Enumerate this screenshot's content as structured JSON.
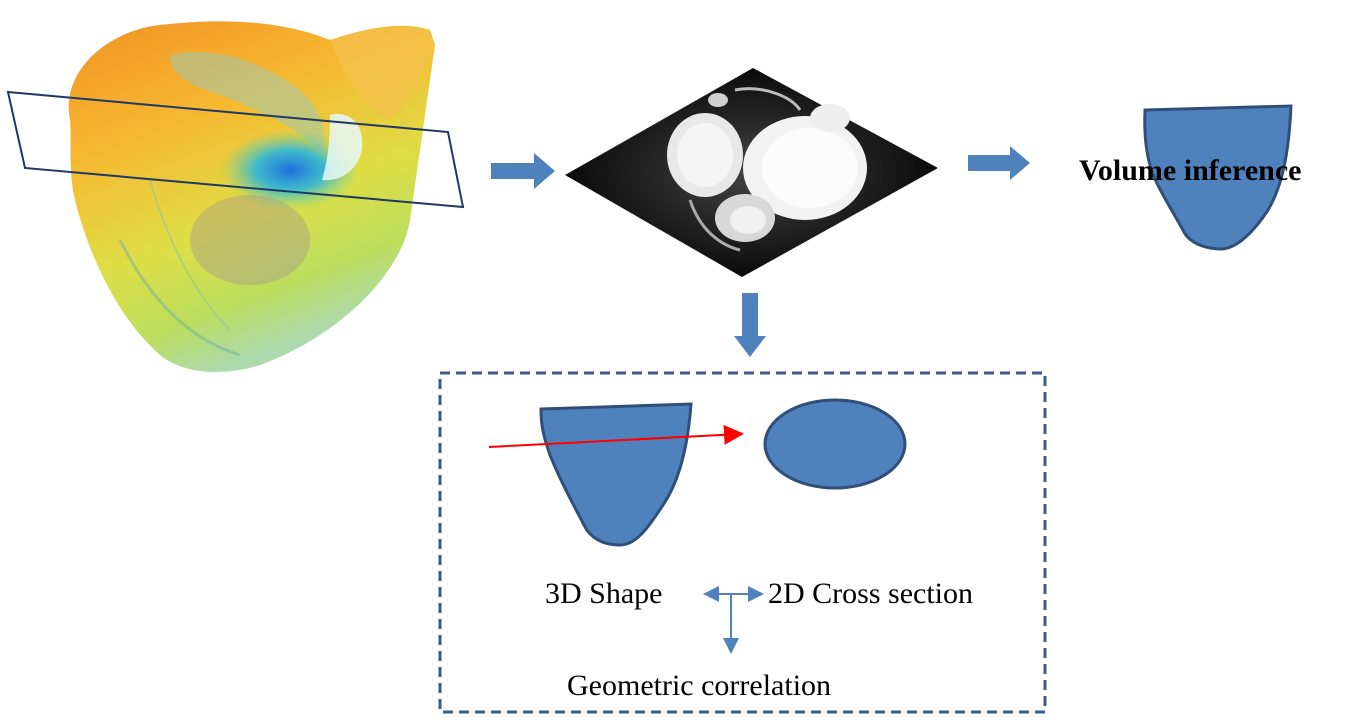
{
  "labels": {
    "volume_inference": "Volume inference",
    "shape_3d": "3D Shape",
    "cross_section_2d": "2D Cross section",
    "geometric_correlation": "Geometric correlation"
  },
  "colors": {
    "shape_fill": "#4f81bd",
    "shape_stroke": "#2f4f7a",
    "arrow": "#4f81bd",
    "plane": "#1f3864",
    "dashed_box": "#385d8a",
    "cut_arrow": "#ff0000"
  },
  "icons": {
    "heart": "heart-3d-volume-render",
    "slice": "mri-slice-image"
  }
}
